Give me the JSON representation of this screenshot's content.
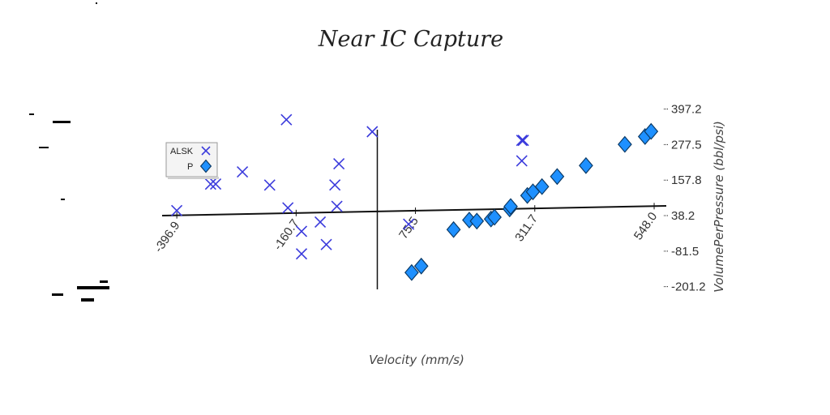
{
  "chart_data": {
    "type": "scatter",
    "title": "Near IC Capture",
    "xlabel": "Velocity (mm/s)",
    "ylabel": "VolumePerPressure (bbl/psi)",
    "x_ticks": [
      "-396.9",
      "-160.7",
      "75.5",
      "311.7",
      "548.0"
    ],
    "y_ticks": [
      "397.2",
      "277.5",
      "157.8",
      "38.2",
      "-81.5",
      "-201.2"
    ],
    "xlim": [
      -426,
      572
    ],
    "ylim": [
      -230,
      420
    ],
    "legend": {
      "position": "top-left",
      "entries": [
        "ALSK",
        "P"
      ]
    },
    "colors": {
      "ALSK": "#3b3bdc",
      "P": "#1e90ff",
      "axis": "#111111"
    },
    "series": [
      {
        "name": "ALSK",
        "marker": "x",
        "points": [
          [
            -397,
            16
          ],
          [
            -330,
            103
          ],
          [
            -320,
            103
          ],
          [
            -267,
            142
          ],
          [
            -213,
            96
          ],
          [
            -180,
            315
          ],
          [
            -177,
            18
          ],
          [
            -150,
            -62
          ],
          [
            -150,
            -138
          ],
          [
            -113,
            -32
          ],
          [
            -101,
            -108
          ],
          [
            -84,
            92
          ],
          [
            -80,
            20
          ],
          [
            -76,
            163
          ],
          [
            -10,
            269
          ],
          [
            62,
            -45
          ],
          [
            286,
            230
          ],
          [
            286,
            161
          ],
          [
            289,
            230
          ]
        ]
      },
      {
        "name": "P",
        "marker": "diamond",
        "points": [
          [
            68,
            -208
          ],
          [
            87,
            -187
          ],
          [
            151,
            -66
          ],
          [
            182,
            -35
          ],
          [
            197,
            -39
          ],
          [
            225,
            -33
          ],
          [
            232,
            -27
          ],
          [
            262,
            0
          ],
          [
            264,
            8
          ],
          [
            297,
            44
          ],
          [
            308,
            56
          ],
          [
            326,
            73
          ],
          [
            356,
            106
          ],
          [
            413,
            141
          ],
          [
            490,
            210
          ],
          [
            530,
            235
          ],
          [
            542,
            252
          ]
        ]
      }
    ]
  }
}
